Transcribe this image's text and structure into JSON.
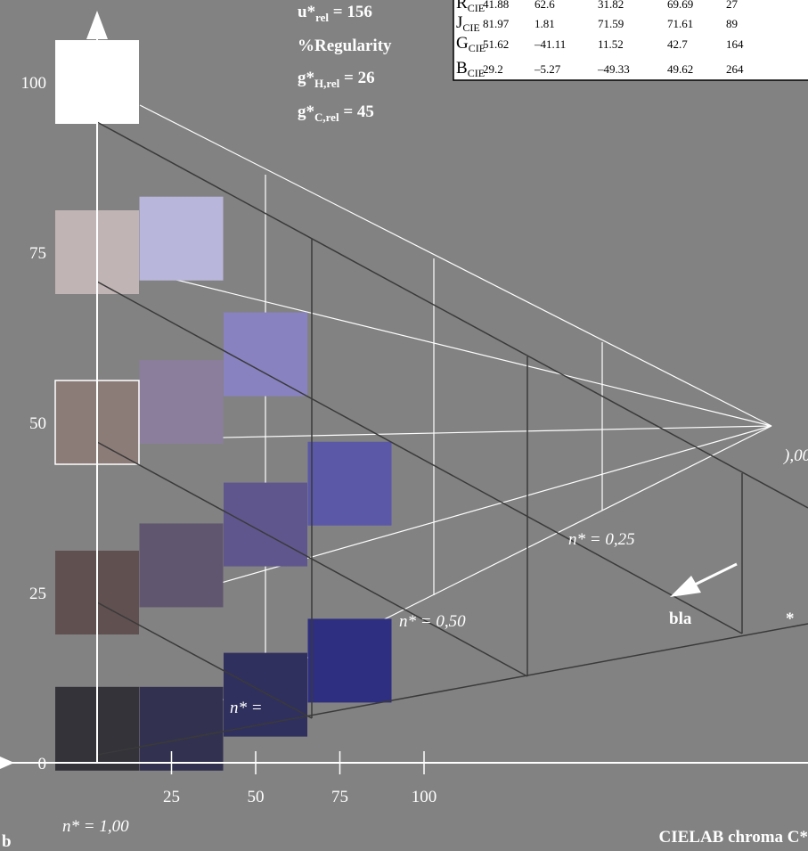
{
  "header_lines": [
    {
      "main": "u*",
      "sub": "rel",
      "tail": " = 156"
    },
    {
      "main": "%Regularity",
      "sub": "",
      "tail": ""
    },
    {
      "main": "g*",
      "sub": "H,rel",
      "tail": " = 26"
    },
    {
      "main": "g*",
      "sub": "C,rel",
      "tail": " = 45"
    }
  ],
  "table": {
    "rows": [
      {
        "name": "R",
        "sub": "CIE",
        "L": "41.88",
        "a": "62.6",
        "b": "31.82",
        "C": "69.69",
        "h": "27"
      },
      {
        "name": "J",
        "sub": "CIE",
        "L": "81.97",
        "a": "1.81",
        "b": "71.59",
        "C": "71.61",
        "h": "89"
      },
      {
        "name": "G",
        "sub": "CIE",
        "L": "51.62",
        "a": "–41.11",
        "b": "11.52",
        "C": "42.7",
        "h": "164"
      },
      {
        "name": "B",
        "sub": "CIE",
        "L": "29.2",
        "a": "–5.27",
        "b": "–49.33",
        "C": "49.62",
        "h": "264"
      }
    ]
  },
  "annotations": {
    "n100": "n* = 1,00",
    "n075": "n* =",
    "n050": "n* = 0,50",
    "n025": "n* = 0,25",
    "n000": "),00",
    "black_label": "bla",
    "star": "*"
  },
  "corner_label": "b",
  "colors": {
    "background": "#828282",
    "grid": "#ffffff",
    "construction": "#3a3a3a"
  },
  "chart_data": {
    "type": "scatter",
    "xlabel": "CIELAB chroma C*",
    "ylabel": "",
    "xlim": [
      0,
      100
    ],
    "ylim": [
      0,
      100
    ],
    "x_ticks": [
      "25",
      "50",
      "75",
      "100"
    ],
    "y_ticks": [
      "0",
      "25",
      "50",
      "75",
      "100"
    ],
    "grid": true,
    "series": [
      {
        "points": [
          {
            "x": 0,
            "y": 5,
            "color": "#333339"
          },
          {
            "x": 0,
            "y": 25,
            "color": "#605050"
          },
          {
            "x": 0,
            "y": 50,
            "color": "#8c7c78"
          },
          {
            "x": 0,
            "y": 75,
            "color": "#c0b4b4"
          },
          {
            "x": 0,
            "y": 100,
            "color": "#ffffff"
          }
        ]
      },
      {
        "points": [
          {
            "x": 25,
            "y": 5,
            "color": "#323250"
          },
          {
            "x": 25,
            "y": 29,
            "color": "#60566f"
          },
          {
            "x": 25,
            "y": 53,
            "color": "#8b7e9c"
          },
          {
            "x": 25,
            "y": 77,
            "color": "#b9b6dc"
          }
        ]
      },
      {
        "points": [
          {
            "x": 50,
            "y": 10,
            "color": "#30305e"
          },
          {
            "x": 50,
            "y": 35,
            "color": "#5f568e"
          },
          {
            "x": 50,
            "y": 60,
            "color": "#8882c0"
          }
        ]
      },
      {
        "points": [
          {
            "x": 75,
            "y": 15,
            "color": "#2f2f82"
          },
          {
            "x": 75,
            "y": 41,
            "color": "#5c58a8"
          }
        ]
      }
    ]
  }
}
